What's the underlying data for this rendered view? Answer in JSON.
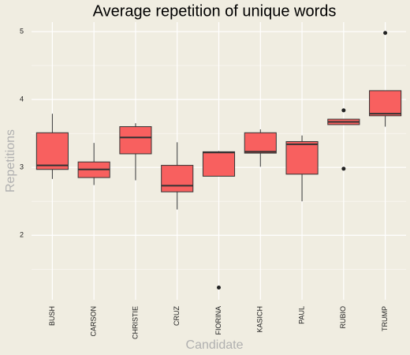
{
  "chart_data": {
    "type": "box",
    "title": "Average repetition of unique words",
    "x_label": "Candidate",
    "y_label": "Repetitions",
    "categories": [
      "BUSH",
      "CARSON",
      "CHRISTIE",
      "CRUZ",
      "FIORINA",
      "KASICH",
      "PAUL",
      "RUBIO",
      "TRUMP"
    ],
    "whisker_low": [
      2.83,
      2.74,
      2.81,
      2.38,
      2.87,
      3.01,
      2.5,
      3.63,
      3.6
    ],
    "q1": [
      2.97,
      2.85,
      3.2,
      2.64,
      2.87,
      3.21,
      2.9,
      3.63,
      3.76
    ],
    "median": [
      3.03,
      2.97,
      3.44,
      2.73,
      3.22,
      3.23,
      3.34,
      3.67,
      3.79
    ],
    "q3": [
      3.51,
      3.08,
      3.6,
      3.03,
      3.23,
      3.51,
      3.38,
      3.71,
      4.13
    ],
    "whisker_high": [
      3.79,
      3.36,
      3.65,
      3.37,
      3.24,
      3.56,
      3.47,
      3.71,
      4.13
    ],
    "outliers": [
      [],
      [],
      [],
      [],
      [
        1.23
      ],
      [],
      [],
      [
        3.84,
        2.98
      ],
      [
        4.98
      ]
    ],
    "color": "#f8605f",
    "ylim": [
      1.05,
      5.14
    ],
    "yticks": [
      2,
      3,
      4,
      5
    ],
    "yticks_minor": [
      1.5,
      2.5,
      3.5,
      4.5
    ],
    "grid": true
  }
}
